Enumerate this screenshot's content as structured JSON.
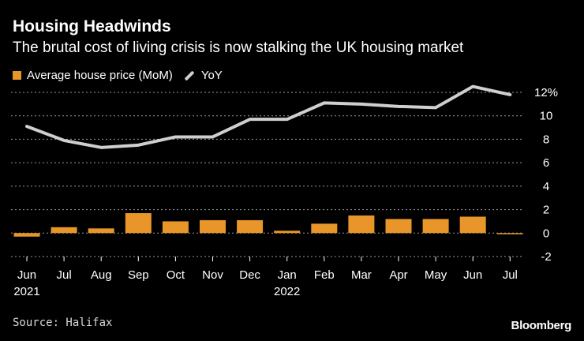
{
  "header": {
    "title": "Housing Headwinds",
    "subtitle": "The brutal cost of living crisis is now stalking the UK housing market"
  },
  "legend": {
    "bar_label": "Average house price (MoM)",
    "line_label": "YoY"
  },
  "footer": {
    "source": "Source: Halifax",
    "brand": "Bloomberg"
  },
  "colors": {
    "bar": "#e8962a",
    "line": "#cfcfcf",
    "grid": "#9a9a9a",
    "background": "#000000"
  },
  "chart_data": {
    "type": "bar+line",
    "title": "Housing Headwinds",
    "subtitle": "The brutal cost of living crisis is now stalking the UK housing market",
    "categories": [
      "Jun",
      "Jul",
      "Aug",
      "Sep",
      "Oct",
      "Nov",
      "Dec",
      "Jan",
      "Feb",
      "Mar",
      "Apr",
      "May",
      "Jun",
      "Jul"
    ],
    "year_labels": [
      {
        "index": 0,
        "label": "2021"
      },
      {
        "index": 7,
        "label": "2022"
      }
    ],
    "series": [
      {
        "name": "Average house price (MoM)",
        "type": "bar",
        "values": [
          -0.3,
          0.5,
          0.4,
          1.7,
          1.0,
          1.1,
          1.1,
          0.2,
          0.8,
          1.5,
          1.2,
          1.2,
          1.4,
          -0.1
        ]
      },
      {
        "name": "YoY",
        "type": "line",
        "values": [
          9.1,
          7.9,
          7.3,
          7.5,
          8.2,
          8.2,
          9.7,
          9.7,
          11.1,
          11.0,
          10.8,
          10.7,
          12.5,
          11.8
        ]
      }
    ],
    "y_ticks": [
      {
        "value": 12,
        "label": "12%"
      },
      {
        "value": 10,
        "label": "10"
      },
      {
        "value": 8,
        "label": "8"
      },
      {
        "value": 6,
        "label": "6"
      },
      {
        "value": 4,
        "label": "4"
      },
      {
        "value": 2,
        "label": "2"
      },
      {
        "value": 0,
        "label": "0"
      },
      {
        "value": -2,
        "label": "-2"
      }
    ],
    "ylim": [
      -2,
      12
    ],
    "y_axis_side": "right",
    "grid": true,
    "xlabel": "",
    "ylabel": ""
  }
}
